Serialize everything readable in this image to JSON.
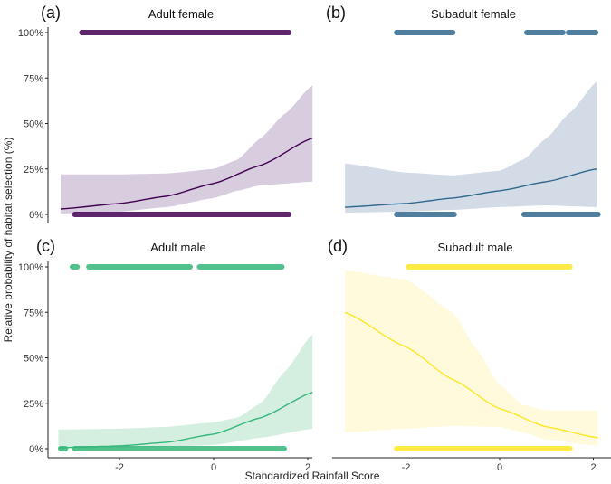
{
  "chart_data": {
    "type": "line",
    "ylabel": "Relative probability of habitat selection (%)",
    "xlabel": "Standardized Rainfall Score",
    "xlim": [
      -3.3,
      2.1
    ],
    "ylim": [
      0,
      100
    ],
    "x_ticks": [
      "-2",
      "0",
      "2"
    ],
    "x_tick_values": [
      -2,
      0,
      2
    ],
    "y_ticks": [
      "0%",
      "25%",
      "50%",
      "75%",
      "100%"
    ],
    "y_tick_values": [
      0,
      25,
      50,
      75,
      100
    ],
    "panels": [
      {
        "label": "(a)",
        "title": "Adult female",
        "color": "#440154",
        "band_color": "#c9bcd3",
        "fit": {
          "x": [
            -3.25,
            -2,
            -1,
            0,
            1,
            2.1
          ],
          "y": [
            3,
            6,
            10,
            17,
            27,
            42
          ]
        },
        "lower": {
          "x": [
            -3.25,
            -2,
            -1,
            0,
            0.5,
            1,
            2.1
          ],
          "y": [
            0.5,
            1.5,
            4,
            9,
            13,
            16,
            18
          ]
        },
        "upper": {
          "x": [
            -3.25,
            -2,
            -1,
            0,
            0.5,
            1,
            1.5,
            2.1
          ],
          "y": [
            22,
            22,
            22.5,
            25,
            30,
            42,
            55,
            71
          ]
        },
        "observed_1_ranges": [
          [
            -2.8,
            1.6
          ]
        ],
        "observed_0_ranges": [
          [
            -2.95,
            1.6
          ]
        ]
      },
      {
        "label": "(b)",
        "title": "Subadult female",
        "color": "#31688e",
        "band_color": "#c3cfdd",
        "fit": {
          "x": [
            -3.3,
            -2,
            -1,
            0,
            1,
            2.07
          ],
          "y": [
            4,
            6,
            9,
            13,
            18,
            25
          ]
        },
        "lower": {
          "x": [
            -3.3,
            -2,
            -1,
            0,
            1,
            2.07
          ],
          "y": [
            1,
            1.5,
            2.5,
            4,
            5,
            4
          ]
        },
        "upper": {
          "x": [
            -3.3,
            -2,
            -1,
            0,
            0.5,
            1,
            1.5,
            2.07
          ],
          "y": [
            28,
            23,
            21.5,
            24,
            30,
            42,
            56,
            73
          ]
        },
        "observed_1_ranges": [
          [
            -2.2,
            -1.0
          ],
          [
            0.58,
            1.35
          ],
          [
            1.47,
            2.05
          ]
        ],
        "observed_0_ranges": [
          [
            -2.2,
            -0.97
          ],
          [
            0.52,
            2.1
          ]
        ]
      },
      {
        "label": "(c)",
        "title": "Adult male",
        "color": "#35b779",
        "band_color": "#c6e9d5",
        "fit": {
          "x": [
            -3.3,
            -2,
            -1,
            0,
            1,
            2.1
          ],
          "y": [
            0.5,
            1.5,
            3.5,
            8,
            17,
            31
          ]
        },
        "lower": {
          "x": [
            -3.3,
            -2,
            -1,
            0,
            1,
            2.1
          ],
          "y": [
            0.3,
            0.5,
            1,
            2,
            6,
            11
          ]
        },
        "upper": {
          "x": [
            -3.3,
            -2,
            -1,
            0,
            0.5,
            1,
            1.5,
            2.1
          ],
          "y": [
            10.5,
            11,
            12,
            14.5,
            17,
            25,
            42,
            63
          ]
        },
        "observed_1_ranges": [
          [
            -3.0,
            -2.9
          ],
          [
            -2.65,
            -0.5
          ],
          [
            -0.3,
            1.45
          ]
        ],
        "observed_0_ranges": [
          [
            -3.25,
            -3.15
          ],
          [
            -2.95,
            1.5
          ]
        ]
      },
      {
        "label": "(d)",
        "title": "Subadult male",
        "color": "#fde725",
        "band_color": "#fdf8cf",
        "fit": {
          "x": [
            -3.3,
            -2,
            -1,
            0,
            1,
            2.1
          ],
          "y": [
            75,
            56,
            38,
            22,
            12,
            6
          ]
        },
        "lower": {
          "x": [
            -3.3,
            -2,
            -1,
            0,
            0.5,
            1,
            2.1
          ],
          "y": [
            9,
            11,
            12.5,
            12,
            9,
            5,
            1.5
          ]
        },
        "upper": {
          "x": [
            -3.3,
            -2,
            -1,
            -0.5,
            0,
            0.5,
            1,
            2.1
          ],
          "y": [
            98,
            93,
            75,
            55,
            35,
            24,
            21,
            21
          ]
        },
        "observed_1_ranges": [
          [
            -1.95,
            1.5
          ]
        ],
        "observed_0_ranges": [
          [
            -2.2,
            1.5
          ]
        ]
      }
    ]
  }
}
